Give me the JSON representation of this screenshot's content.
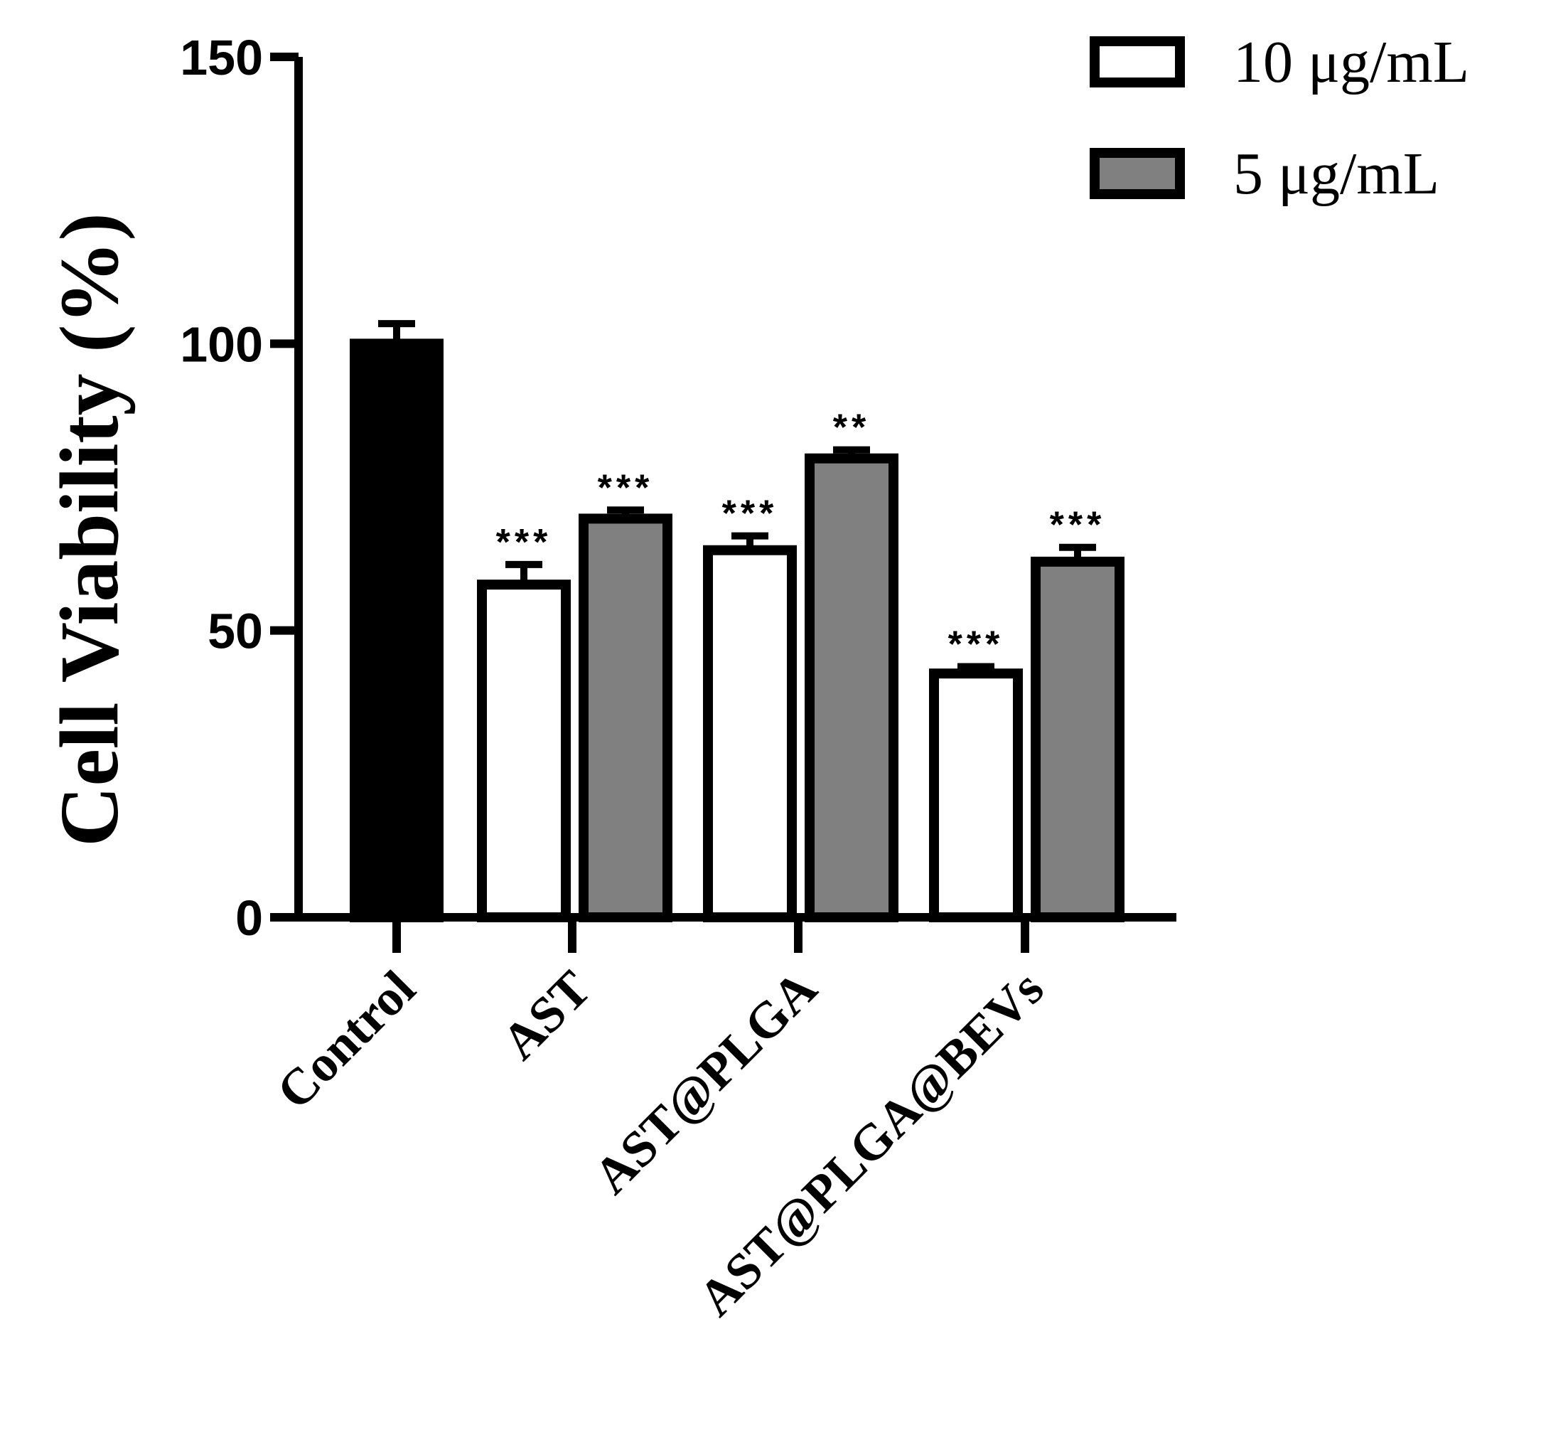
{
  "chart_data": {
    "type": "bar",
    "title": "",
    "xlabel": "",
    "ylabel": "Cell Viability (%)",
    "ylim": [
      0,
      150
    ],
    "yticks": [
      "0",
      "50",
      "100",
      "150"
    ],
    "ytick_values": [
      0,
      50,
      100,
      150
    ],
    "categories": [
      "Control",
      "AST",
      "AST@PLGA",
      "AST@PLGA@BEVs"
    ],
    "series": [
      {
        "name": "Control",
        "color": "#000000",
        "values": [
          100,
          null,
          null,
          null
        ],
        "errors": [
          3.5,
          null,
          null,
          null
        ],
        "significance": [
          "",
          null,
          null,
          null
        ]
      },
      {
        "name": "10 μg/mL",
        "color": "#ffffff",
        "values": [
          null,
          58,
          64,
          42.5
        ],
        "errors": [
          null,
          3.5,
          2.5,
          1.2
        ],
        "significance": [
          null,
          "***",
          "***",
          "***"
        ]
      },
      {
        "name": "5 μg/mL",
        "color": "#808080",
        "values": [
          null,
          69.5,
          80,
          62
        ],
        "errors": [
          null,
          1.5,
          1.5,
          2.5
        ],
        "significance": [
          null,
          "***",
          "**",
          "***"
        ]
      }
    ],
    "legend": {
      "position": "top-right",
      "entries": [
        {
          "label": "10 μg/mL",
          "color": "#ffffff"
        },
        {
          "label": "5 μg/mL",
          "color": "#808080"
        }
      ]
    },
    "grid": false
  }
}
